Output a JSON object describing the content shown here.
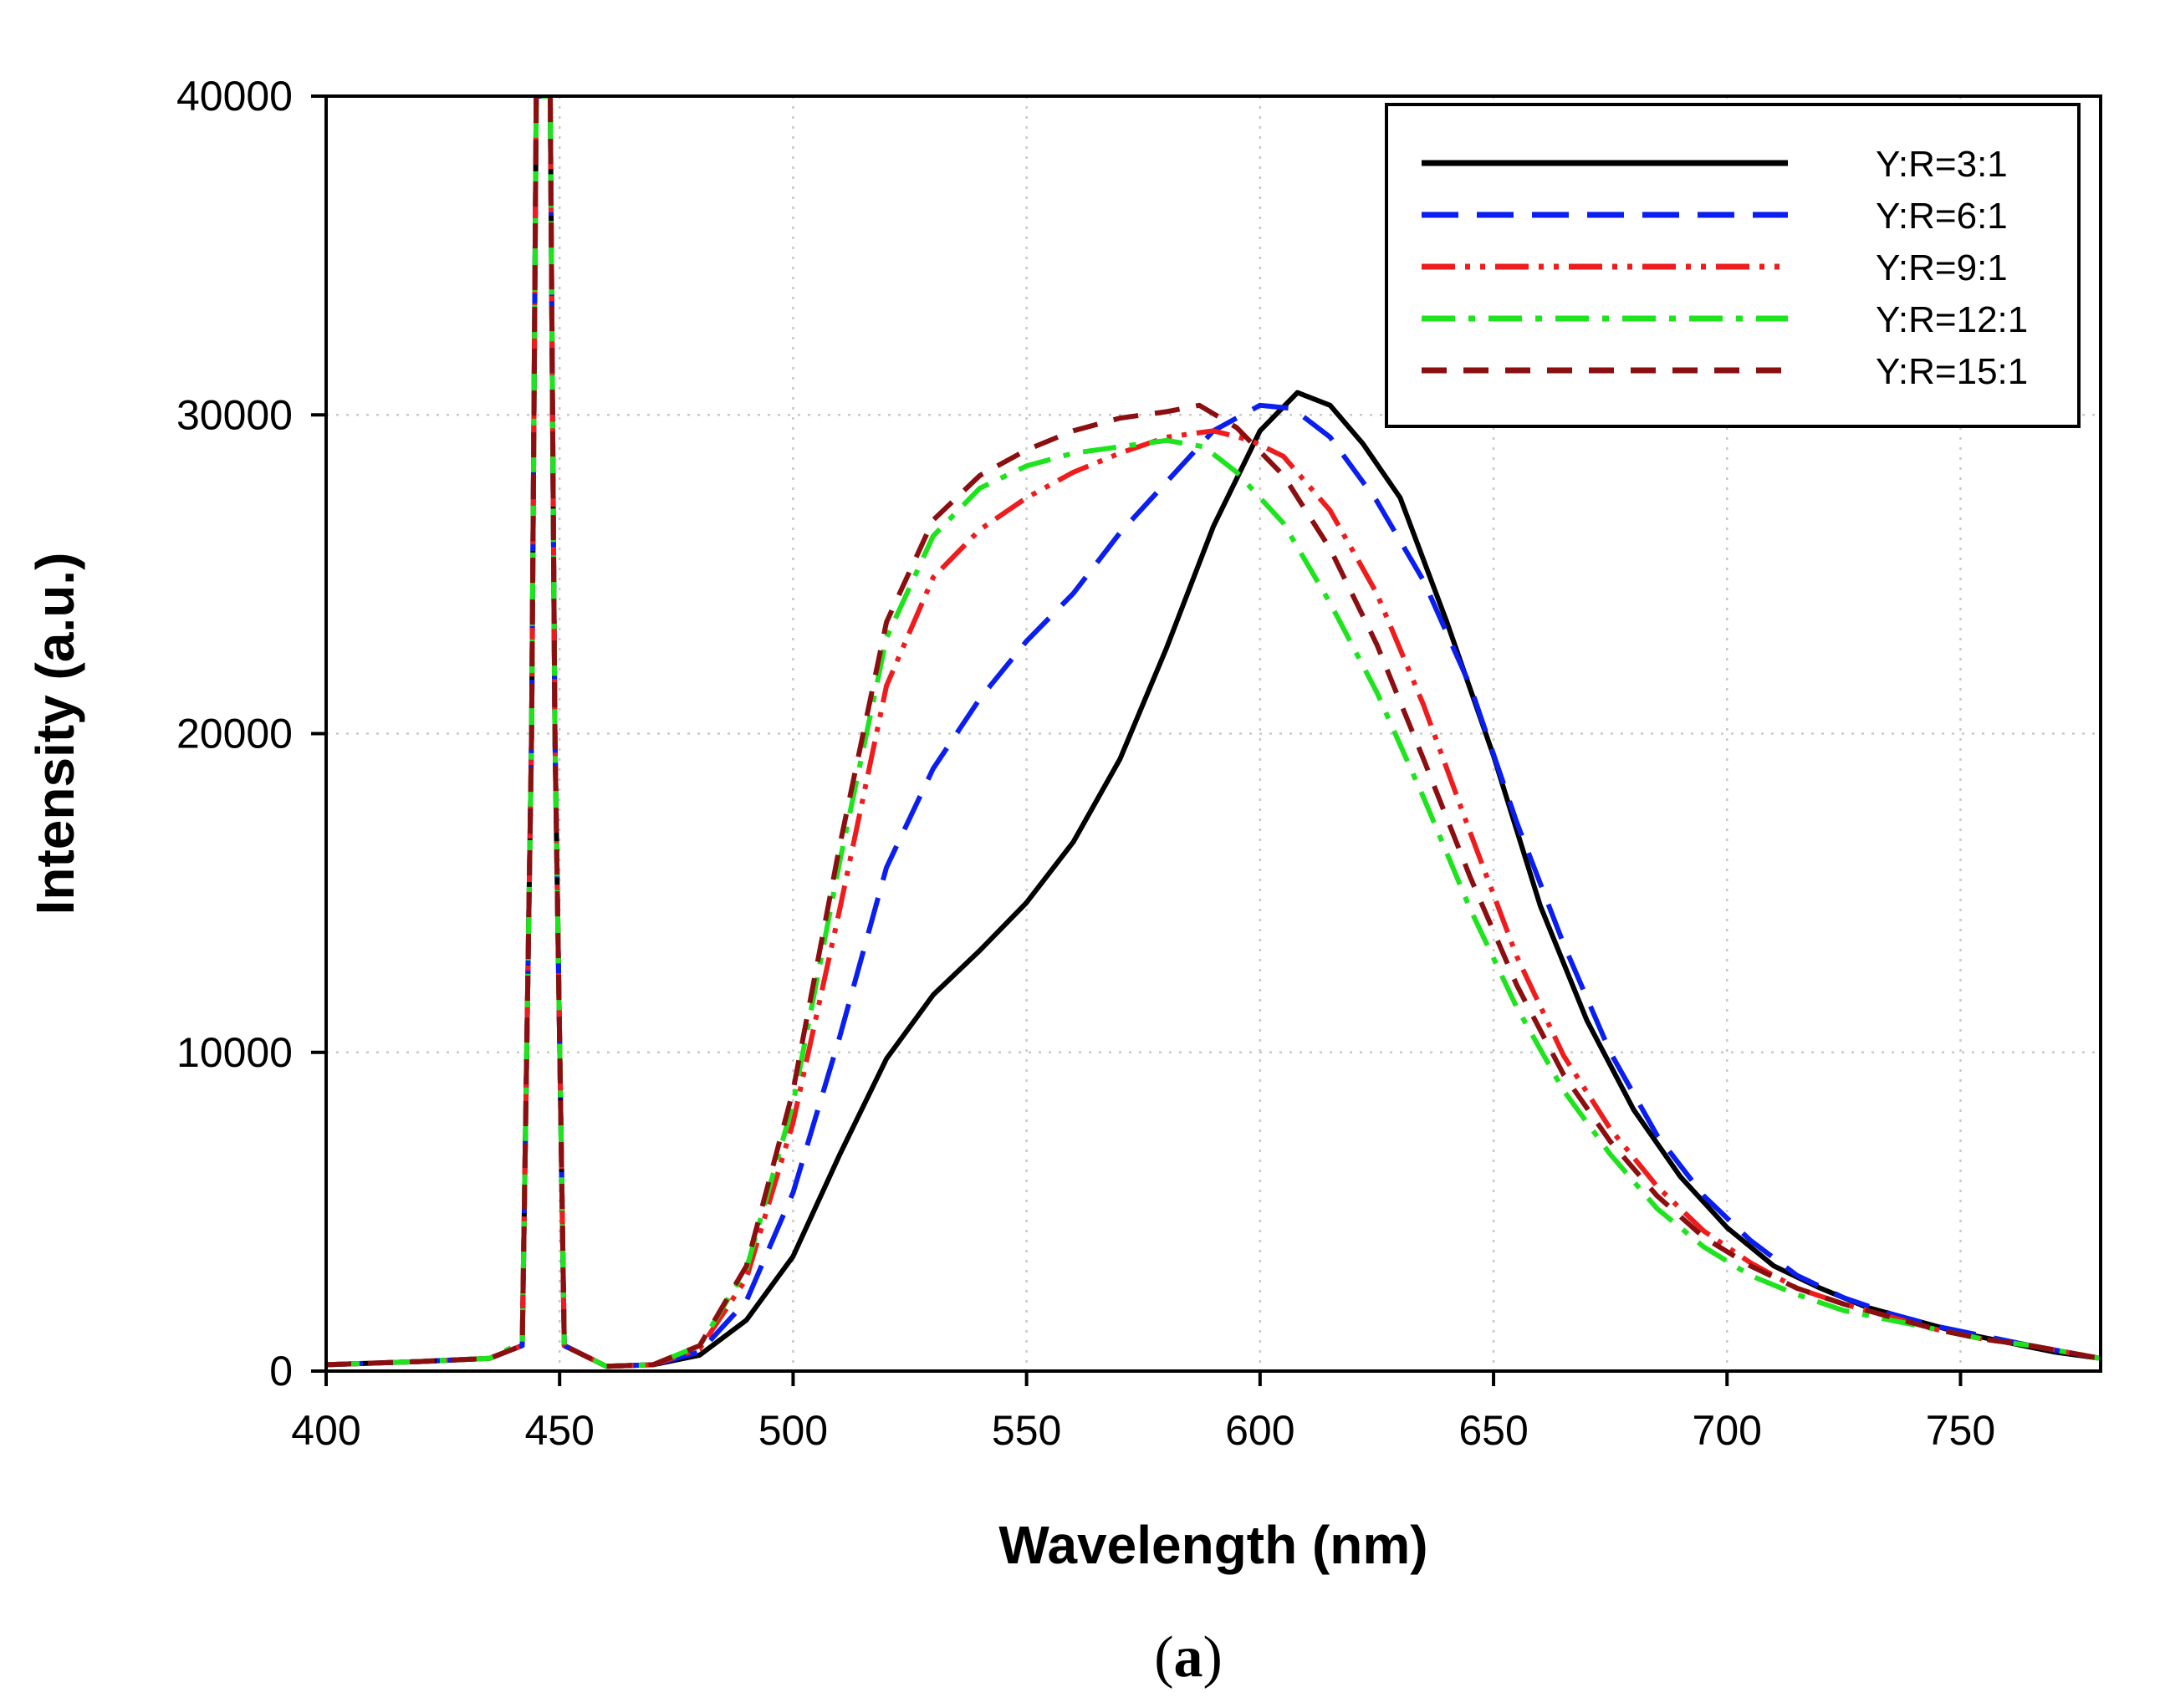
{
  "chart_data": {
    "type": "line",
    "panel_label": "a",
    "xlabel": "Wavelength (nm)",
    "ylabel": "Intensity (a.u.)",
    "xlim": [
      400,
      780
    ],
    "ylim": [
      0,
      40000
    ],
    "x_ticks": [
      400,
      450,
      500,
      550,
      600,
      650,
      700,
      750
    ],
    "y_ticks": [
      0,
      10000,
      20000,
      30000,
      40000
    ],
    "grid": "dotted",
    "legend_position": "top-right",
    "series": [
      {
        "name": "Y:R=3:1",
        "color": "#000000",
        "dash": "solid",
        "points": [
          [
            400,
            200
          ],
          [
            420,
            300
          ],
          [
            435,
            400
          ],
          [
            442,
            800
          ],
          [
            444,
            20000
          ],
          [
            445,
            40000
          ],
          [
            446,
            40000
          ],
          [
            447,
            40000
          ],
          [
            448,
            40000
          ],
          [
            449,
            20000
          ],
          [
            451,
            800
          ],
          [
            460,
            150
          ],
          [
            470,
            200
          ],
          [
            480,
            500
          ],
          [
            490,
            1600
          ],
          [
            500,
            3600
          ],
          [
            510,
            6800
          ],
          [
            520,
            9800
          ],
          [
            530,
            11800
          ],
          [
            540,
            13200
          ],
          [
            550,
            14700
          ],
          [
            560,
            16600
          ],
          [
            570,
            19200
          ],
          [
            580,
            22700
          ],
          [
            590,
            26500
          ],
          [
            600,
            29500
          ],
          [
            608,
            30700
          ],
          [
            615,
            30300
          ],
          [
            622,
            29100
          ],
          [
            630,
            27400
          ],
          [
            640,
            23500
          ],
          [
            650,
            19300
          ],
          [
            660,
            14600
          ],
          [
            670,
            11000
          ],
          [
            680,
            8200
          ],
          [
            690,
            6100
          ],
          [
            700,
            4500
          ],
          [
            710,
            3300
          ],
          [
            720,
            2600
          ],
          [
            730,
            2000
          ],
          [
            740,
            1600
          ],
          [
            750,
            1200
          ],
          [
            760,
            900
          ],
          [
            770,
            600
          ],
          [
            780,
            400
          ]
        ]
      },
      {
        "name": "Y:R=6:1",
        "color": "#0a1ef0",
        "dash": "long",
        "points": [
          [
            400,
            200
          ],
          [
            420,
            300
          ],
          [
            435,
            400
          ],
          [
            442,
            800
          ],
          [
            444,
            20000
          ],
          [
            445,
            40000
          ],
          [
            446,
            40000
          ],
          [
            447,
            40000
          ],
          [
            448,
            40000
          ],
          [
            449,
            20000
          ],
          [
            451,
            800
          ],
          [
            460,
            150
          ],
          [
            470,
            200
          ],
          [
            480,
            600
          ],
          [
            490,
            2200
          ],
          [
            500,
            5600
          ],
          [
            510,
            10500
          ],
          [
            520,
            15800
          ],
          [
            530,
            18900
          ],
          [
            540,
            21100
          ],
          [
            550,
            22900
          ],
          [
            560,
            24400
          ],
          [
            570,
            26300
          ],
          [
            580,
            27900
          ],
          [
            590,
            29500
          ],
          [
            600,
            30300
          ],
          [
            607,
            30200
          ],
          [
            615,
            29300
          ],
          [
            625,
            27300
          ],
          [
            635,
            24800
          ],
          [
            645,
            21500
          ],
          [
            655,
            17200
          ],
          [
            665,
            13400
          ],
          [
            675,
            10000
          ],
          [
            685,
            7400
          ],
          [
            695,
            5500
          ],
          [
            705,
            4100
          ],
          [
            715,
            3000
          ],
          [
            725,
            2300
          ],
          [
            735,
            1800
          ],
          [
            745,
            1400
          ],
          [
            755,
            1100
          ],
          [
            765,
            800
          ],
          [
            780,
            400
          ]
        ]
      },
      {
        "name": "Y:R=9:1",
        "color": "#ee1c1c",
        "dash": "dashdotdot",
        "points": [
          [
            400,
            200
          ],
          [
            420,
            300
          ],
          [
            435,
            400
          ],
          [
            442,
            800
          ],
          [
            444,
            20000
          ],
          [
            445,
            40000
          ],
          [
            446,
            40000
          ],
          [
            447,
            40000
          ],
          [
            448,
            40000
          ],
          [
            449,
            20000
          ],
          [
            451,
            800
          ],
          [
            460,
            150
          ],
          [
            470,
            200
          ],
          [
            480,
            700
          ],
          [
            490,
            2900
          ],
          [
            500,
            7800
          ],
          [
            510,
            14500
          ],
          [
            520,
            21500
          ],
          [
            530,
            24900
          ],
          [
            540,
            26400
          ],
          [
            550,
            27400
          ],
          [
            560,
            28200
          ],
          [
            570,
            28800
          ],
          [
            580,
            29300
          ],
          [
            590,
            29500
          ],
          [
            598,
            29200
          ],
          [
            605,
            28700
          ],
          [
            615,
            27000
          ],
          [
            625,
            24400
          ],
          [
            635,
            20900
          ],
          [
            645,
            16900
          ],
          [
            655,
            13000
          ],
          [
            665,
            9900
          ],
          [
            675,
            7600
          ],
          [
            685,
            5800
          ],
          [
            695,
            4400
          ],
          [
            705,
            3400
          ],
          [
            715,
            2600
          ],
          [
            725,
            2100
          ],
          [
            735,
            1700
          ],
          [
            745,
            1300
          ],
          [
            755,
            1000
          ],
          [
            765,
            800
          ],
          [
            780,
            400
          ]
        ]
      },
      {
        "name": "Y:R=12:1",
        "color": "#1de41d",
        "dash": "dashdot",
        "points": [
          [
            400,
            200
          ],
          [
            420,
            300
          ],
          [
            435,
            400
          ],
          [
            442,
            900
          ],
          [
            444,
            20000
          ],
          [
            445,
            40000
          ],
          [
            446,
            40000
          ],
          [
            447,
            40000
          ],
          [
            448,
            40000
          ],
          [
            449,
            20000
          ],
          [
            451,
            800
          ],
          [
            460,
            150
          ],
          [
            470,
            200
          ],
          [
            480,
            800
          ],
          [
            490,
            3200
          ],
          [
            500,
            8400
          ],
          [
            510,
            16000
          ],
          [
            520,
            23000
          ],
          [
            530,
            26200
          ],
          [
            540,
            27700
          ],
          [
            550,
            28400
          ],
          [
            560,
            28800
          ],
          [
            570,
            29000
          ],
          [
            580,
            29200
          ],
          [
            588,
            29000
          ],
          [
            595,
            28200
          ],
          [
            605,
            26600
          ],
          [
            615,
            24100
          ],
          [
            625,
            21300
          ],
          [
            635,
            18000
          ],
          [
            645,
            14500
          ],
          [
            655,
            11400
          ],
          [
            665,
            8800
          ],
          [
            675,
            6800
          ],
          [
            685,
            5100
          ],
          [
            695,
            3900
          ],
          [
            705,
            3000
          ],
          [
            715,
            2400
          ],
          [
            725,
            1900
          ],
          [
            735,
            1600
          ],
          [
            745,
            1300
          ],
          [
            755,
            1000
          ],
          [
            765,
            800
          ],
          [
            780,
            400
          ]
        ]
      },
      {
        "name": "Y:R=15:1",
        "color": "#8b0f10",
        "dash": "medium",
        "points": [
          [
            400,
            200
          ],
          [
            420,
            300
          ],
          [
            435,
            400
          ],
          [
            442,
            800
          ],
          [
            444,
            20000
          ],
          [
            445,
            40000
          ],
          [
            446,
            40000
          ],
          [
            447,
            40000
          ],
          [
            448,
            40000
          ],
          [
            449,
            20000
          ],
          [
            451,
            800
          ],
          [
            460,
            150
          ],
          [
            470,
            200
          ],
          [
            480,
            800
          ],
          [
            490,
            3300
          ],
          [
            500,
            8800
          ],
          [
            510,
            16500
          ],
          [
            520,
            23500
          ],
          [
            530,
            26700
          ],
          [
            540,
            28100
          ],
          [
            550,
            28900
          ],
          [
            560,
            29500
          ],
          [
            570,
            29900
          ],
          [
            580,
            30100
          ],
          [
            587,
            30300
          ],
          [
            595,
            29600
          ],
          [
            605,
            28100
          ],
          [
            615,
            25800
          ],
          [
            625,
            22800
          ],
          [
            635,
            19200
          ],
          [
            645,
            15500
          ],
          [
            655,
            12100
          ],
          [
            665,
            9300
          ],
          [
            675,
            7200
          ],
          [
            685,
            5500
          ],
          [
            695,
            4200
          ],
          [
            705,
            3300
          ],
          [
            715,
            2600
          ],
          [
            725,
            2100
          ],
          [
            735,
            1700
          ],
          [
            745,
            1300
          ],
          [
            755,
            1000
          ],
          [
            765,
            800
          ],
          [
            780,
            400
          ]
        ]
      }
    ]
  }
}
